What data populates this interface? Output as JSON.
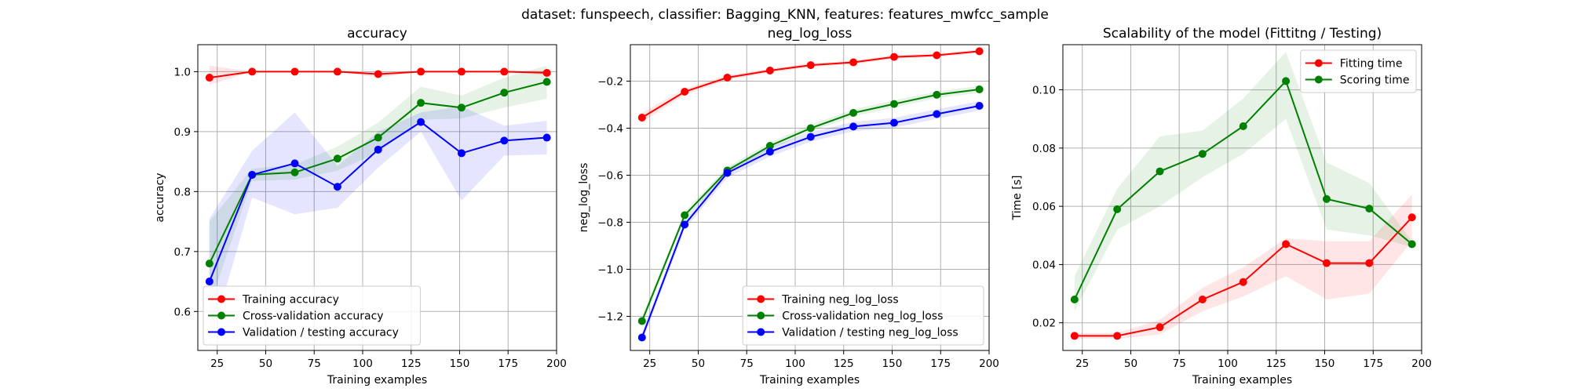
{
  "figure": {
    "suptitle": "dataset: funspeech, classifier: Bagging_KNN, features: features_mwfcc_sample"
  },
  "chart_data": [
    {
      "type": "line",
      "title": "accuracy",
      "xlabel": "Training examples",
      "ylabel": "accuracy",
      "xlim": [
        15,
        200
      ],
      "ylim": [
        0.535,
        1.045
      ],
      "xticks": [
        25,
        50,
        75,
        100,
        125,
        150,
        175,
        200
      ],
      "xtick_labels": [
        "25",
        "50",
        "75",
        "100",
        "125",
        "150",
        "175",
        "200"
      ],
      "yticks": [
        0.6,
        0.7,
        0.8,
        0.9,
        1.0
      ],
      "ytick_labels": [
        "0.6",
        "0.7",
        "0.8",
        "0.9",
        "1.0"
      ],
      "grid": true,
      "legend_position": "lower-left",
      "x": [
        21,
        43,
        65,
        87,
        108,
        130,
        151,
        173,
        195
      ],
      "series": [
        {
          "name": "Training accuracy",
          "color": "#ff0000",
          "values": [
            0.99,
            1.0,
            1.0,
            1.0,
            0.996,
            1.0,
            1.0,
            1.0,
            0.998
          ],
          "band_lower": [
            0.978,
            1.0,
            1.0,
            1.0,
            0.99,
            1.0,
            1.0,
            1.0,
            0.994
          ],
          "band_upper": [
            1.01,
            1.0,
            1.0,
            1.0,
            1.0,
            1.0,
            1.0,
            1.0,
            1.002
          ]
        },
        {
          "name": "Cross-validation accuracy",
          "color": "#008000",
          "values": [
            0.68,
            0.828,
            0.832,
            0.855,
            0.89,
            0.948,
            0.94,
            0.965,
            0.983
          ],
          "band_lower": [
            0.61,
            0.818,
            0.82,
            0.835,
            0.865,
            0.92,
            0.922,
            0.94,
            0.955
          ],
          "band_upper": [
            0.75,
            0.838,
            0.845,
            0.875,
            0.915,
            0.975,
            0.96,
            0.99,
            1.01
          ]
        },
        {
          "name": "Validation / testing accuracy",
          "color": "#0000ff",
          "values": [
            0.65,
            0.828,
            0.847,
            0.808,
            0.87,
            0.916,
            0.864,
            0.885,
            0.89
          ],
          "band_lower": [
            0.545,
            0.79,
            0.762,
            0.773,
            0.84,
            0.9,
            0.785,
            0.86,
            0.862
          ],
          "band_upper": [
            0.755,
            0.868,
            0.932,
            0.843,
            0.9,
            0.932,
            0.942,
            0.91,
            0.918
          ]
        }
      ]
    },
    {
      "type": "line",
      "title": "neg_log_loss",
      "xlabel": "Training examples",
      "ylabel": "neg_log_loss",
      "xlim": [
        15,
        200
      ],
      "ylim": [
        -1.345,
        -0.045
      ],
      "xticks": [
        25,
        50,
        75,
        100,
        125,
        150,
        175,
        200
      ],
      "xtick_labels": [
        "25",
        "50",
        "75",
        "100",
        "125",
        "150",
        "175",
        "200"
      ],
      "yticks": [
        -1.2,
        -1.0,
        -0.8,
        -0.6,
        -0.4,
        -0.2
      ],
      "ytick_labels": [
        "−1.2",
        "−1.0",
        "−0.8",
        "−0.6",
        "−0.4",
        "−0.2"
      ],
      "grid": true,
      "legend_position": "lower-right",
      "x": [
        21,
        43,
        65,
        87,
        108,
        130,
        151,
        173,
        195
      ],
      "series": [
        {
          "name": "Training neg_log_loss",
          "color": "#ff0000",
          "values": [
            -0.355,
            -0.245,
            -0.185,
            -0.155,
            -0.132,
            -0.12,
            -0.097,
            -0.09,
            -0.073
          ],
          "band_lower": [
            -0.375,
            -0.258,
            -0.195,
            -0.163,
            -0.14,
            -0.128,
            -0.105,
            -0.098,
            -0.08
          ],
          "band_upper": [
            -0.335,
            -0.232,
            -0.175,
            -0.147,
            -0.124,
            -0.112,
            -0.089,
            -0.082,
            -0.066
          ]
        },
        {
          "name": "Cross-validation neg_log_loss",
          "color": "#008000",
          "values": [
            -1.22,
            -0.77,
            -0.58,
            -0.475,
            -0.4,
            -0.335,
            -0.297,
            -0.258,
            -0.235
          ],
          "band_lower": [
            -1.24,
            -0.785,
            -0.595,
            -0.49,
            -0.415,
            -0.35,
            -0.312,
            -0.272,
            -0.25
          ],
          "band_upper": [
            -1.2,
            -0.755,
            -0.565,
            -0.46,
            -0.385,
            -0.32,
            -0.282,
            -0.244,
            -0.22
          ]
        },
        {
          "name": "Validation / testing neg_log_loss",
          "color": "#0000ff",
          "values": [
            -1.29,
            -0.81,
            -0.59,
            -0.5,
            -0.437,
            -0.393,
            -0.377,
            -0.34,
            -0.305
          ],
          "band_lower": [
            -1.31,
            -0.83,
            -0.61,
            -0.52,
            -0.457,
            -0.413,
            -0.398,
            -0.36,
            -0.325
          ],
          "band_upper": [
            -1.27,
            -0.79,
            -0.57,
            -0.48,
            -0.417,
            -0.373,
            -0.356,
            -0.32,
            -0.285
          ]
        }
      ]
    },
    {
      "type": "line",
      "title": "Scalability of the model (Fittitng / Testing)",
      "xlabel": "Training examples",
      "ylabel": "Time [s]",
      "xlim": [
        15,
        200
      ],
      "ylim": [
        0.0105,
        0.1155
      ],
      "xticks": [
        25,
        50,
        75,
        100,
        125,
        150,
        175,
        200
      ],
      "xtick_labels": [
        "25",
        "50",
        "75",
        "100",
        "125",
        "150",
        "175",
        "200"
      ],
      "yticks": [
        0.02,
        0.04,
        0.06,
        0.08,
        0.1
      ],
      "ytick_labels": [
        "0.02",
        "0.04",
        "0.06",
        "0.08",
        "0.10"
      ],
      "grid": true,
      "legend_position": "upper-right",
      "x": [
        21,
        43,
        65,
        87,
        108,
        130,
        151,
        173,
        195
      ],
      "series": [
        {
          "name": "Fitting time",
          "color": "#ff0000",
          "values": [
            0.0155,
            0.0155,
            0.0185,
            0.028,
            0.034,
            0.047,
            0.0405,
            0.0405,
            0.0562
          ],
          "band_lower": [
            0.0145,
            0.0145,
            0.016,
            0.024,
            0.029,
            0.036,
            0.028,
            0.03,
            0.048
          ],
          "band_upper": [
            0.0165,
            0.0165,
            0.021,
            0.032,
            0.039,
            0.049,
            0.048,
            0.048,
            0.064
          ]
        },
        {
          "name": "Scoring time",
          "color": "#008000",
          "values": [
            0.028,
            0.059,
            0.072,
            0.078,
            0.0875,
            0.103,
            0.0625,
            0.0592,
            0.047
          ],
          "band_lower": [
            0.024,
            0.052,
            0.06,
            0.07,
            0.078,
            0.09,
            0.052,
            0.05,
            0.046
          ],
          "band_upper": [
            0.036,
            0.066,
            0.084,
            0.086,
            0.097,
            0.113,
            0.075,
            0.068,
            0.048
          ]
        }
      ]
    }
  ]
}
